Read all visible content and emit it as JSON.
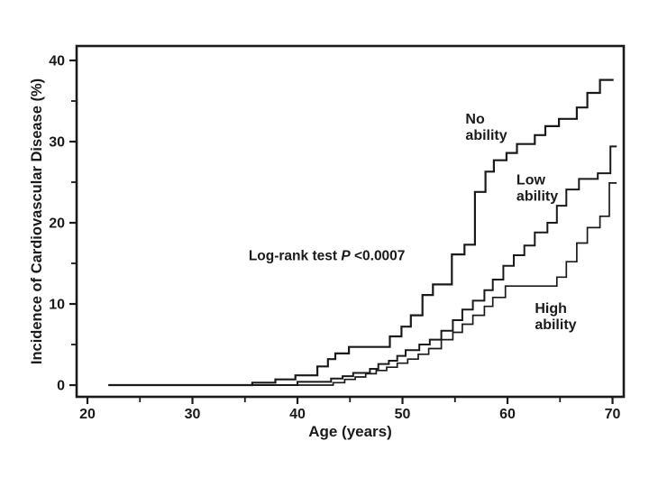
{
  "figure": {
    "background": "#ffffff",
    "ink_color": "#1a1a1a"
  },
  "chart_data": {
    "type": "line",
    "line_style": "step-after",
    "title": "",
    "xlabel": "Age (years)",
    "ylabel": "Incidence of Cardiovascular Disease (%)",
    "grid": false,
    "legend_position": "inline-curve-labels",
    "x_axis": {
      "min": 18.97,
      "max": 71.07,
      "major_ticks": [
        20,
        30,
        40,
        50,
        60,
        70
      ],
      "minor_ticks": [
        25,
        35,
        45,
        55,
        65
      ]
    },
    "y_axis": {
      "min": -1.44,
      "max": 41.78,
      "major_ticks": [
        0,
        10,
        20,
        30,
        40
      ],
      "minor_ticks": [
        5,
        15,
        25,
        35
      ]
    },
    "annotation": {
      "prefix": "Log-rank test ",
      "p_symbol": "P",
      "suffix": " <0.0007",
      "age": 35.35,
      "pct": 15.4
    },
    "series": [
      {
        "name": "No ability",
        "key": "no-ability",
        "label_lines": [
          "No",
          "ability"
        ],
        "label_age": 56.0,
        "label_pct": 32.2,
        "color": "#1a1a1a",
        "width": 2.2,
        "points": [
          [
            22,
            0
          ],
          [
            35.7,
            0.3
          ],
          [
            37.9,
            0.7
          ],
          [
            39.8,
            1.2
          ],
          [
            41.9,
            2.3
          ],
          [
            42.9,
            3.2
          ],
          [
            43.6,
            3.9
          ],
          [
            44.9,
            4.7
          ],
          [
            48.8,
            6.0
          ],
          [
            49.9,
            7.2
          ],
          [
            50.8,
            8.6
          ],
          [
            51.9,
            11.1
          ],
          [
            52.9,
            12.4
          ],
          [
            54.7,
            16.1
          ],
          [
            55.9,
            17.3
          ],
          [
            56.9,
            23.8
          ],
          [
            57.9,
            26.3
          ],
          [
            58.7,
            27.7
          ],
          [
            59.9,
            28.6
          ],
          [
            60.9,
            29.7
          ],
          [
            62.6,
            30.8
          ],
          [
            63.6,
            31.9
          ],
          [
            64.9,
            32.8
          ],
          [
            66.6,
            34.2
          ],
          [
            67.6,
            36.0
          ],
          [
            68.8,
            37.6
          ],
          [
            70.1,
            37.6
          ]
        ]
      },
      {
        "name": "Low ability",
        "key": "low-ability",
        "label_lines": [
          "Low",
          "ability"
        ],
        "label_age": 60.85,
        "label_pct": 24.7,
        "color": "#1a1a1a",
        "width": 2.0,
        "points": [
          [
            22,
            0
          ],
          [
            40.0,
            0.4
          ],
          [
            43.2,
            0.8
          ],
          [
            44.3,
            1.1
          ],
          [
            45.3,
            1.5
          ],
          [
            46.9,
            2.0
          ],
          [
            47.7,
            2.6
          ],
          [
            48.7,
            3.0
          ],
          [
            49.5,
            3.6
          ],
          [
            50.3,
            4.3
          ],
          [
            51.6,
            5.0
          ],
          [
            52.6,
            5.6
          ],
          [
            53.7,
            6.7
          ],
          [
            54.8,
            8.0
          ],
          [
            55.7,
            9.3
          ],
          [
            56.7,
            10.4
          ],
          [
            57.8,
            11.7
          ],
          [
            58.6,
            13.0
          ],
          [
            59.6,
            14.7
          ],
          [
            60.6,
            16.0
          ],
          [
            61.6,
            17.2
          ],
          [
            62.6,
            18.8
          ],
          [
            63.8,
            20.0
          ],
          [
            64.7,
            22.1
          ],
          [
            65.6,
            24.1
          ],
          [
            66.8,
            25.4
          ],
          [
            68.6,
            26.1
          ],
          [
            69.8,
            29.4
          ],
          [
            70.4,
            29.4
          ]
        ]
      },
      {
        "name": "High ability",
        "key": "high-ability",
        "label_lines": [
          "High",
          "ability"
        ],
        "label_age": 62.6,
        "label_pct": 8.9,
        "color": "#1a1a1a",
        "width": 1.7,
        "points": [
          [
            22,
            0
          ],
          [
            43.4,
            0.3
          ],
          [
            44.5,
            0.7
          ],
          [
            45.5,
            1.0
          ],
          [
            46.5,
            1.4
          ],
          [
            47.5,
            1.8
          ],
          [
            48.5,
            2.2
          ],
          [
            49.5,
            2.7
          ],
          [
            50.5,
            3.2
          ],
          [
            51.5,
            3.8
          ],
          [
            52.5,
            4.5
          ],
          [
            53.7,
            5.6
          ],
          [
            54.8,
            6.5
          ],
          [
            55.7,
            7.5
          ],
          [
            56.7,
            8.6
          ],
          [
            57.8,
            9.7
          ],
          [
            58.6,
            10.8
          ],
          [
            59.8,
            12.2
          ],
          [
            64.7,
            13.3
          ],
          [
            65.6,
            15.2
          ],
          [
            66.6,
            17.5
          ],
          [
            67.6,
            19.4
          ],
          [
            68.8,
            20.8
          ],
          [
            69.7,
            24.9
          ],
          [
            70.4,
            24.9
          ]
        ]
      }
    ]
  }
}
